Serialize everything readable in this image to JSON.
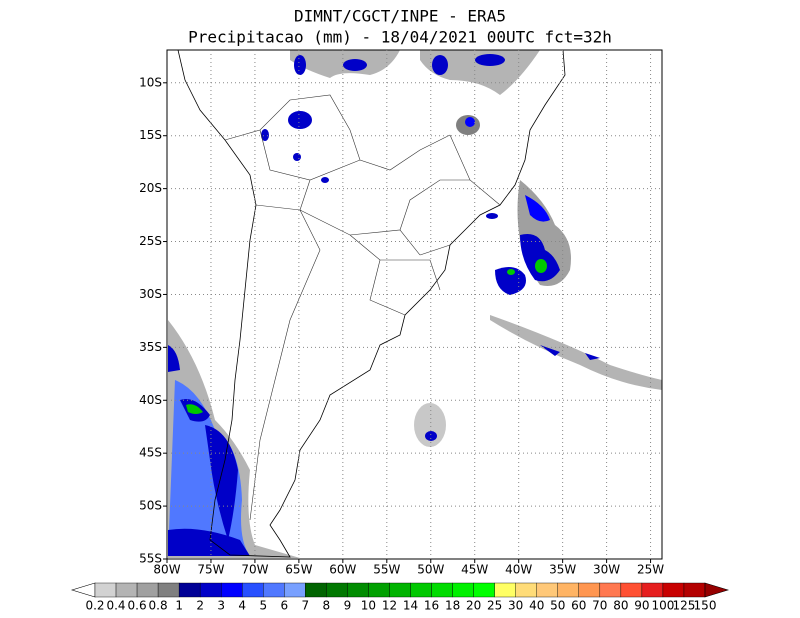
{
  "header": {
    "title": "DIMNT/CGCT/INPE -  ERA5",
    "subtitle": "Precipitacao (mm) - 18/04/2021 00UTC fct=32h"
  },
  "map": {
    "lonlim": [
      -80,
      -23.7
    ],
    "latlim": [
      -55,
      -6.9
    ],
    "lonticks": [
      {
        "value": -80,
        "label": "80W"
      },
      {
        "value": -75,
        "label": "75W"
      },
      {
        "value": -70,
        "label": "70W"
      },
      {
        "value": -65,
        "label": "65W"
      },
      {
        "value": -60,
        "label": "60W"
      },
      {
        "value": -55,
        "label": "55W"
      },
      {
        "value": -50,
        "label": "50W"
      },
      {
        "value": -45,
        "label": "45W"
      },
      {
        "value": -40,
        "label": "40W"
      },
      {
        "value": -35,
        "label": "35W"
      },
      {
        "value": -30,
        "label": "30W"
      },
      {
        "value": -25,
        "label": "25W"
      }
    ],
    "latticks": [
      {
        "value": -10,
        "label": "10S"
      },
      {
        "value": -15,
        "label": "15S"
      },
      {
        "value": -20,
        "label": "20S"
      },
      {
        "value": -25,
        "label": "25S"
      },
      {
        "value": -30,
        "label": "30S"
      },
      {
        "value": -35,
        "label": "35S"
      },
      {
        "value": -40,
        "label": "40S"
      },
      {
        "value": -45,
        "label": "45S"
      },
      {
        "value": -50,
        "label": "50S"
      },
      {
        "value": -55,
        "label": "55S"
      }
    ]
  },
  "colorbar": {
    "levels": [
      0.2,
      0.4,
      0.6,
      0.8,
      1,
      2,
      3,
      4,
      5,
      6,
      7,
      8,
      9,
      10,
      12,
      14,
      16,
      18,
      20,
      25,
      30,
      40,
      50,
      60,
      70,
      80,
      90,
      100,
      125,
      150
    ],
    "colors": [
      "#ffffff",
      "#d2d2d2",
      "#b4b4b4",
      "#a0a0a0",
      "#808080",
      "#000096",
      "#0000c8",
      "#0000ff",
      "#2850ff",
      "#5078ff",
      "#78a0ff",
      "#006400",
      "#007800",
      "#008c00",
      "#00a000",
      "#00b400",
      "#00c800",
      "#00dc00",
      "#00f000",
      "#00ff00",
      "#ffff64",
      "#ffdc78",
      "#ffc878",
      "#ffb464",
      "#ff9650",
      "#ff7850",
      "#ff5032",
      "#e61e1e",
      "#c80000",
      "#b40000",
      "#960000"
    ]
  }
}
